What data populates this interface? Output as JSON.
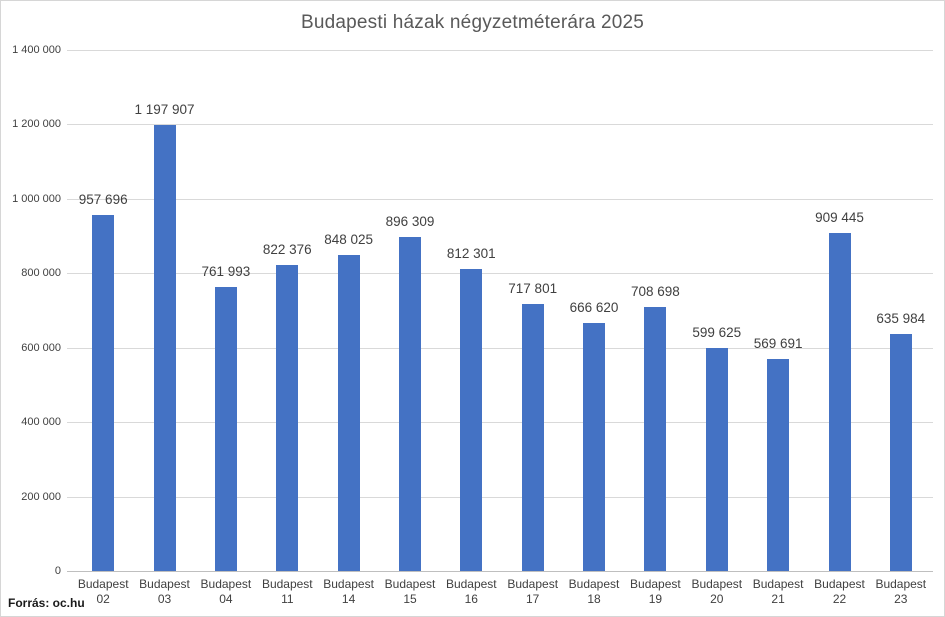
{
  "title": "Budapesti házak négyzetméterára 2025",
  "source": "Forrás: oc.hu",
  "colors": {
    "bar": "#4472C4",
    "title_text": "#595959",
    "label_text": "#404040",
    "gridline": "#D9D9D9",
    "axis_line": "#BFBFBF"
  },
  "chart_data": {
    "type": "bar",
    "title": "Budapesti házak négyzetméterára 2025",
    "categories": [
      "Budapest 02",
      "Budapest 03",
      "Budapest 04",
      "Budapest 11",
      "Budapest 14",
      "Budapest 15",
      "Budapest 16",
      "Budapest 17",
      "Budapest 18",
      "Budapest 19",
      "Budapest 20",
      "Budapest 21",
      "Budapest 22",
      "Budapest 23"
    ],
    "values": [
      957696,
      1197907,
      761993,
      822376,
      848025,
      896309,
      812301,
      717801,
      666620,
      708698,
      599625,
      569691,
      909445,
      635984
    ],
    "data_labels": [
      "957 696",
      "1 197 907",
      "761 993",
      "822 376",
      "848 025",
      "896 309",
      "812 301",
      "717 801",
      "666 620",
      "708 698",
      "599 625",
      "569 691",
      "909 445",
      "635 984"
    ],
    "xlabel": "",
    "ylabel": "",
    "ylim": [
      0,
      1400000
    ],
    "y_tick_step": 200000,
    "y_tick_labels": [
      "0",
      "200 000",
      "400 000",
      "600 000",
      "800 000",
      "1 000 000",
      "1 200 000",
      "1 400 000"
    ],
    "grid": true,
    "legend": "none",
    "bar_color": "#4472C4"
  }
}
